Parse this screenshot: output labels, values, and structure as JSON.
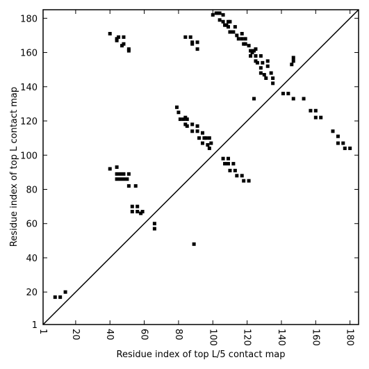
{
  "chart_data": {
    "type": "scatter",
    "xlabel": "Residue index of top L/5 contact map",
    "ylabel": "Residue index of top L contact map",
    "xlim": [
      1,
      185
    ],
    "ylim": [
      1,
      185
    ],
    "xticks": [
      1,
      20,
      40,
      60,
      80,
      100,
      120,
      140,
      160,
      180
    ],
    "yticks": [
      1,
      20,
      40,
      60,
      80,
      100,
      120,
      140,
      160,
      180
    ],
    "diagonal": {
      "x": [
        1,
        185
      ],
      "y": [
        1,
        185
      ],
      "color": "#000000"
    },
    "series": [
      {
        "color": "#000000",
        "x": [
          40,
          44,
          45,
          44,
          48,
          48,
          47,
          51,
          51,
          84,
          87,
          88,
          88,
          91,
          91,
          100,
          102,
          103,
          104,
          104,
          106,
          106,
          107,
          108,
          109,
          109,
          110,
          111,
          110,
          112,
          113,
          114,
          115,
          117,
          117,
          118,
          119,
          119,
          121,
          122,
          122,
          123,
          124,
          125,
          125,
          125,
          126,
          128,
          129,
          128,
          128,
          130,
          131,
          132,
          132,
          134,
          135,
          135,
          124,
          141,
          144,
          147,
          146,
          147,
          147,
          153,
          157,
          160,
          160,
          163,
          170,
          173,
          173,
          176,
          177,
          180,
          79,
          80,
          81,
          83,
          84,
          85,
          84,
          85,
          88,
          88,
          91,
          91,
          92,
          94,
          95,
          94,
          96,
          97,
          98,
          98,
          99,
          40,
          44,
          44,
          44,
          46,
          46,
          48,
          48,
          50,
          51,
          51,
          53,
          55,
          56,
          56,
          53,
          58,
          59,
          66,
          66,
          89,
          106,
          107,
          109,
          109,
          110,
          112,
          113,
          114,
          117,
          118,
          121,
          8,
          11,
          14
        ],
        "y": [
          171,
          168,
          169,
          167,
          169,
          165,
          164,
          161,
          162,
          169,
          169,
          166,
          165,
          166,
          162,
          182,
          183,
          183,
          183,
          179,
          182,
          178,
          176,
          176,
          178,
          175,
          172,
          172,
          178,
          172,
          175,
          170,
          168,
          168,
          171,
          165,
          165,
          168,
          164,
          161,
          158,
          160,
          161,
          162,
          158,
          155,
          154,
          158,
          154,
          151,
          148,
          147,
          145,
          155,
          152,
          148,
          145,
          142,
          133,
          136,
          136,
          133,
          153,
          155,
          157,
          133,
          126,
          126,
          122,
          122,
          114,
          111,
          107,
          107,
          104,
          104,
          128,
          125,
          121,
          121,
          122,
          121,
          118,
          117,
          118,
          114,
          117,
          114,
          110,
          113,
          110,
          107,
          110,
          106,
          110,
          104,
          107,
          92,
          93,
          89,
          86,
          89,
          86,
          89,
          86,
          86,
          82,
          89,
          70,
          82,
          67,
          70,
          67,
          66,
          67,
          60,
          57,
          48,
          98,
          95,
          98,
          95,
          91,
          95,
          91,
          88,
          88,
          85,
          85,
          17,
          17,
          20
        ]
      }
    ]
  }
}
